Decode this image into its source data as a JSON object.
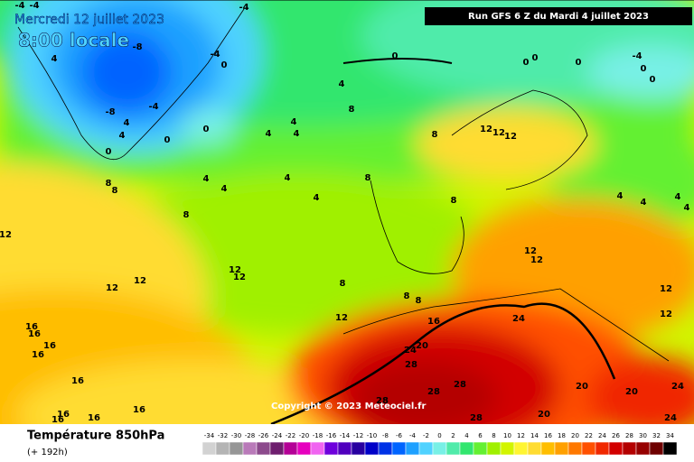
{
  "header": {
    "date": "Mercredi 12 juillet 2023",
    "time": "8:00 locale",
    "run": "Run GFS 6 Z du Mardi 4 juillet 2023"
  },
  "copyright": "Copyright © 2023 Meteociel.fr",
  "legend": {
    "title": "Température 850hPa",
    "subtitle": "(+ 192h)",
    "scale": [
      -34,
      -32,
      -30,
      -28,
      -26,
      -24,
      -22,
      -20,
      -18,
      -16,
      -14,
      -12,
      -10,
      -8,
      -6,
      -4,
      -2,
      0,
      2,
      4,
      6,
      8,
      10,
      12,
      14,
      16,
      18,
      20,
      22,
      24,
      26,
      28,
      30,
      32,
      34
    ],
    "colors": [
      "#d2d2d2",
      "#b4b4b4",
      "#969696",
      "#b97ab9",
      "#8c4a8c",
      "#6e1e6e",
      "#b40096",
      "#e600be",
      "#f064f0",
      "#6e00dc",
      "#5000be",
      "#2800a0",
      "#0000c8",
      "#0032e6",
      "#0064ff",
      "#1ea0ff",
      "#50d2ff",
      "#78f0e6",
      "#50ebaa",
      "#32e66e",
      "#64f032",
      "#a0f000",
      "#d2f500",
      "#fff532",
      "#ffdc32",
      "#ffbe00",
      "#ffa000",
      "#ff7800",
      "#ff5000",
      "#f02800",
      "#d20000",
      "#b40000",
      "#960000",
      "#6e0000",
      "#000000"
    ]
  },
  "contour_labels": [
    -4,
    -4,
    -4,
    -8,
    -4,
    0,
    -8,
    -4,
    4,
    4,
    0,
    0,
    0,
    4,
    0,
    0,
    0,
    0,
    -4,
    0,
    0,
    4,
    8,
    4,
    4,
    4,
    8,
    12,
    12,
    12,
    4,
    4,
    4,
    4,
    8,
    8,
    8,
    8,
    8,
    4,
    4,
    4,
    4,
    12,
    12,
    12,
    12,
    12,
    8,
    8,
    8,
    12,
    16,
    24,
    12,
    12,
    12,
    12,
    16,
    16,
    16,
    16,
    24,
    20,
    28,
    28,
    28,
    28,
    16,
    16,
    16,
    16,
    16,
    20,
    20,
    24,
    20,
    24,
    28
  ]
}
